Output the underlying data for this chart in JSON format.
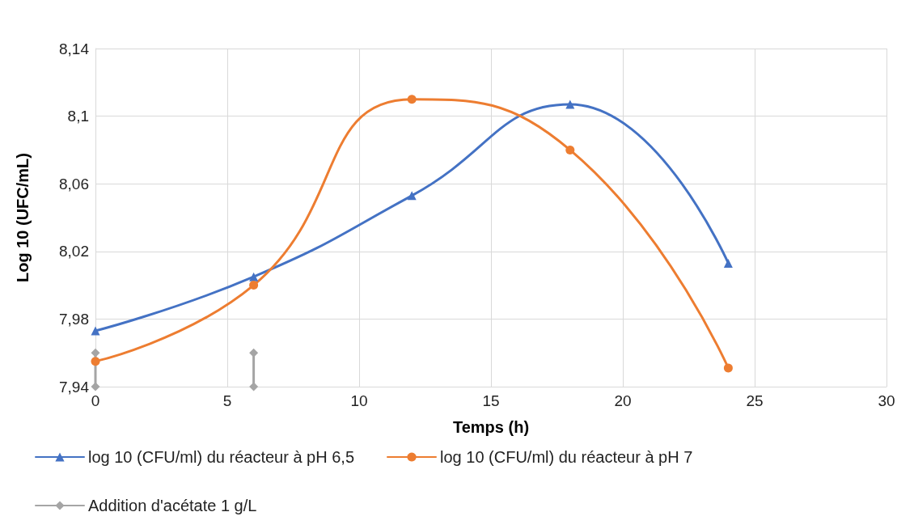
{
  "chart_data": {
    "type": "line",
    "xlabel": "Temps (h)",
    "ylabel": "Log 10 (UFC/mL)",
    "xlim": [
      0,
      30
    ],
    "xticks": [
      0,
      5,
      10,
      15,
      20,
      25,
      30
    ],
    "ylim": [
      7.94,
      8.14
    ],
    "yticks": [
      {
        "value": 7.94,
        "label": "7,94"
      },
      {
        "value": 7.98,
        "label": "7,98"
      },
      {
        "value": 8.02,
        "label": "8,02"
      },
      {
        "value": 8.06,
        "label": "8,06"
      },
      {
        "value": 8.1,
        "label": "8,1"
      },
      {
        "value": 8.14,
        "label": "8,14"
      }
    ],
    "grid": true,
    "legend": "bottom",
    "series": [
      {
        "name": "log 10 (CFU/ml) du réacteur à pH 6,5",
        "color": "#4472c4",
        "marker": "triangle",
        "x": [
          0,
          6,
          12,
          18,
          24
        ],
        "values": [
          7.973,
          8.005,
          8.053,
          8.107,
          8.013
        ]
      },
      {
        "name": "log 10 (CFU/ml) du réacteur à pH 7",
        "color": "#ed7d31",
        "marker": "circle",
        "x": [
          0,
          6,
          12,
          18,
          24
        ],
        "values": [
          7.955,
          8.0,
          8.11,
          8.08,
          7.951
        ]
      },
      {
        "name": "Addition d'acétate 1 g/L",
        "color": "#a5a5a5",
        "marker": "diamond",
        "x": [
          0,
          0
        ],
        "values": [
          7.94,
          7.96
        ]
      },
      {
        "color": "#a5a5a5",
        "marker": "diamond",
        "x": [
          6,
          6
        ],
        "values": [
          7.94,
          7.96
        ]
      }
    ]
  }
}
